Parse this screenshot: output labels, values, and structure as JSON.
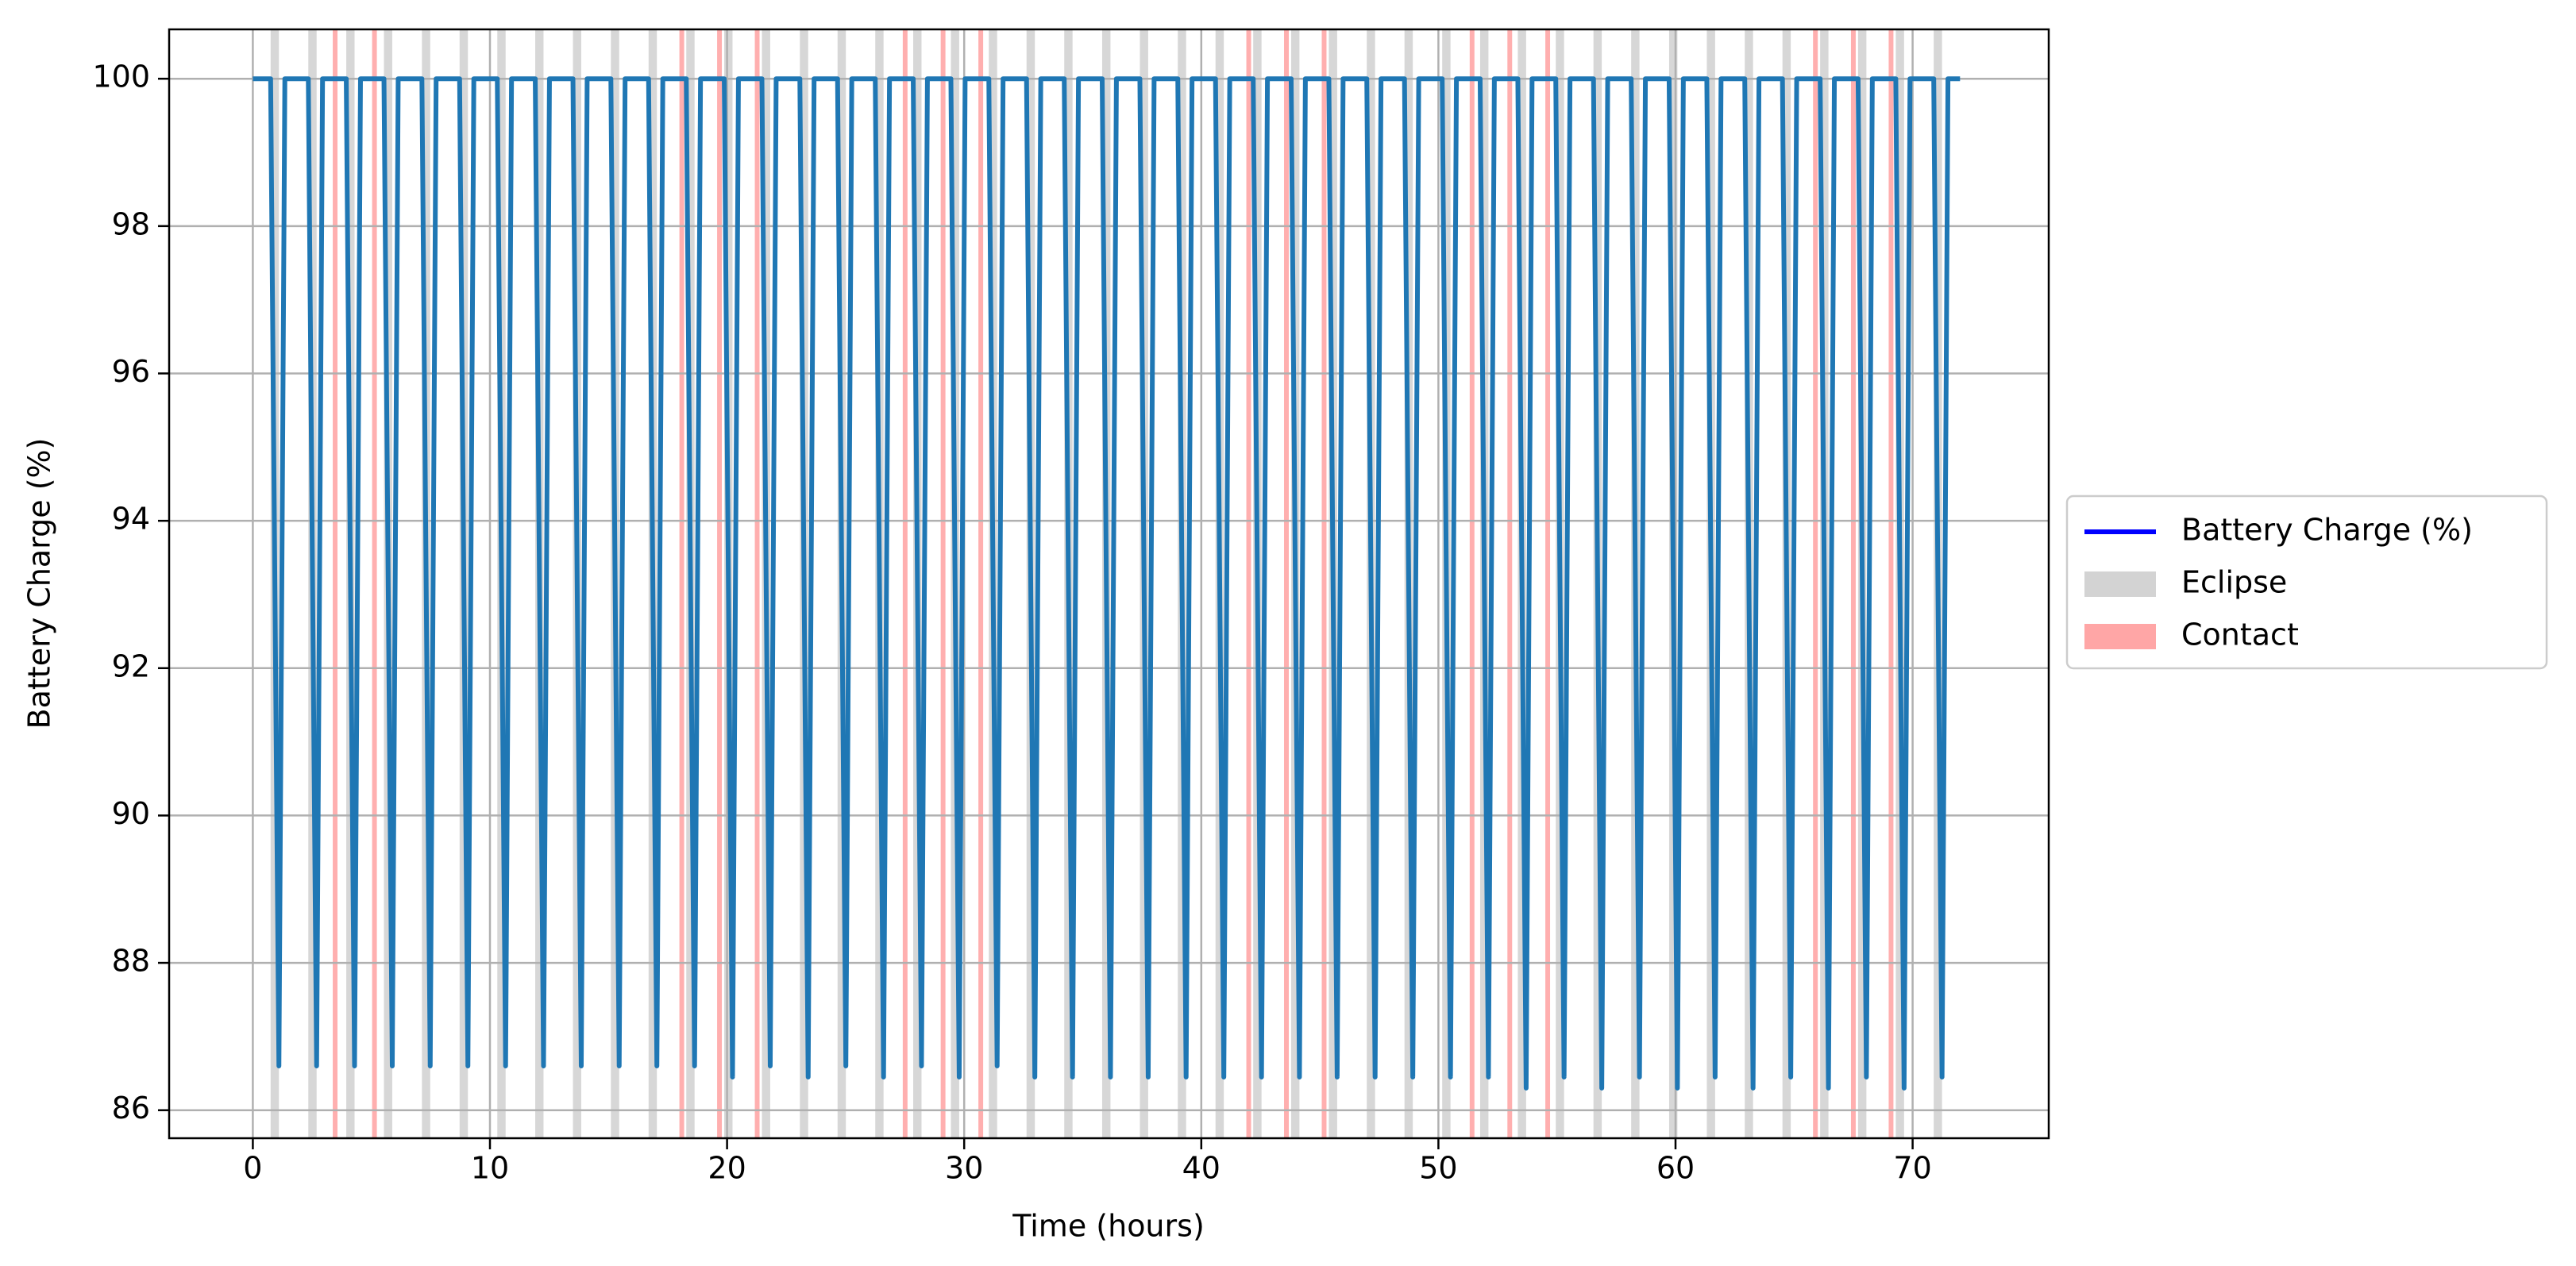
{
  "chart_data": {
    "type": "line",
    "xlabel": "Time (hours)",
    "ylabel": "Battery Charge (%)",
    "xlim": [
      -3.53,
      75.74
    ],
    "ylim": [
      85.62,
      100.67
    ],
    "xticks": [
      0,
      10,
      20,
      30,
      40,
      50,
      60,
      70
    ],
    "yticks": [
      86,
      88,
      90,
      92,
      94,
      96,
      98,
      100
    ],
    "grid": true,
    "legend": "outside right",
    "x": [
      0,
      0.75,
      1.1,
      1.35,
      2.34,
      2.69,
      2.94,
      3.94,
      4.29,
      4.54,
      5.53,
      5.88,
      6.13,
      7.13,
      7.48,
      7.73,
      8.72,
      9.07,
      9.32,
      10.31,
      10.66,
      10.91,
      11.91,
      12.26,
      12.51,
      13.5,
      13.85,
      14.1,
      15.1,
      15.45,
      15.7,
      16.69,
      17.04,
      17.29,
      18.28,
      18.63,
      18.88,
      19.88,
      20.23,
      20.48,
      21.47,
      21.82,
      22.07,
      23.07,
      23.42,
      23.67,
      24.66,
      25.01,
      25.26,
      26.25,
      26.6,
      26.85,
      27.85,
      28.2,
      28.45,
      29.44,
      29.79,
      30.04,
      31.04,
      31.39,
      31.64,
      32.63,
      32.98,
      33.23,
      34.22,
      34.57,
      34.82,
      35.82,
      36.17,
      36.42,
      37.41,
      37.76,
      38.01,
      39.01,
      39.36,
      39.61,
      40.6,
      40.95,
      41.2,
      42.19,
      42.54,
      42.79,
      43.79,
      44.14,
      44.39,
      45.38,
      45.73,
      45.98,
      46.98,
      47.33,
      47.58,
      48.57,
      48.92,
      49.17,
      50.16,
      50.51,
      50.76,
      51.76,
      52.11,
      52.36,
      53.35,
      53.7,
      53.95,
      54.95,
      55.3,
      55.55,
      56.54,
      56.89,
      57.14,
      58.13,
      58.48,
      58.73,
      59.73,
      60.08,
      60.33,
      61.32,
      61.67,
      61.92,
      62.92,
      63.27,
      63.52,
      64.51,
      64.86,
      65.11,
      66.1,
      66.45,
      66.7,
      67.7,
      68.05,
      68.3,
      69.29,
      69.64,
      69.89,
      70.89,
      71.24,
      71.49,
      72
    ],
    "series": [
      {
        "name": "Battery Charge (%)",
        "color": "#1f77b4",
        "legend_color": "#0000ff",
        "values": [
          100,
          100,
          86.6,
          100,
          100,
          86.6,
          100,
          100,
          86.6,
          100,
          100,
          86.6,
          100,
          100,
          86.6,
          100,
          100,
          86.6,
          100,
          100,
          86.6,
          100,
          100,
          86.6,
          100,
          100,
          86.6,
          100,
          100,
          86.6,
          100,
          100,
          86.6,
          100,
          100,
          86.6,
          100,
          100,
          86.45,
          100,
          100,
          86.6,
          100,
          100,
          86.45,
          100,
          100,
          86.6,
          100,
          100,
          86.45,
          100,
          100,
          86.6,
          100,
          100,
          86.45,
          100,
          100,
          86.6,
          100,
          100,
          86.45,
          100,
          100,
          86.45,
          100,
          100,
          86.45,
          100,
          100,
          86.45,
          100,
          100,
          86.45,
          100,
          100,
          86.45,
          100,
          100,
          86.45,
          100,
          100,
          86.45,
          100,
          100,
          86.45,
          100,
          100,
          86.45,
          100,
          100,
          86.45,
          100,
          100,
          86.45,
          100,
          100,
          86.45,
          100,
          100,
          86.3,
          100,
          100,
          86.45,
          100,
          100,
          86.3,
          100,
          100,
          86.45,
          100,
          100,
          86.3,
          100,
          100,
          86.45,
          100,
          100,
          86.3,
          100,
          100,
          86.45,
          100,
          100,
          86.3,
          100,
          100,
          86.45,
          100,
          100,
          86.3,
          100,
          100,
          86.45,
          100,
          100
        ]
      }
    ],
    "shaded_regions": [
      {
        "name": "Eclipse",
        "color": "#d3d3d3",
        "spans": [
          [
            0.75,
            1.1
          ],
          [
            2.34,
            2.69
          ],
          [
            3.94,
            4.29
          ],
          [
            5.53,
            5.88
          ],
          [
            7.13,
            7.48
          ],
          [
            8.72,
            9.07
          ],
          [
            10.31,
            10.66
          ],
          [
            11.91,
            12.26
          ],
          [
            13.5,
            13.85
          ],
          [
            15.1,
            15.45
          ],
          [
            16.69,
            17.04
          ],
          [
            18.28,
            18.63
          ],
          [
            19.88,
            20.23
          ],
          [
            21.47,
            21.82
          ],
          [
            23.07,
            23.42
          ],
          [
            24.66,
            25.01
          ],
          [
            26.25,
            26.6
          ],
          [
            27.85,
            28.2
          ],
          [
            29.44,
            29.79
          ],
          [
            31.04,
            31.39
          ],
          [
            32.63,
            32.98
          ],
          [
            34.22,
            34.57
          ],
          [
            35.82,
            36.17
          ],
          [
            37.41,
            37.76
          ],
          [
            39.01,
            39.36
          ],
          [
            40.6,
            40.95
          ],
          [
            42.19,
            42.54
          ],
          [
            43.79,
            44.14
          ],
          [
            45.38,
            45.73
          ],
          [
            46.98,
            47.33
          ],
          [
            48.57,
            48.92
          ],
          [
            50.16,
            50.51
          ],
          [
            51.76,
            52.11
          ],
          [
            53.35,
            53.7
          ],
          [
            54.95,
            55.3
          ],
          [
            56.54,
            56.89
          ],
          [
            58.13,
            58.48
          ],
          [
            59.73,
            60.08
          ],
          [
            61.32,
            61.67
          ],
          [
            62.92,
            63.27
          ],
          [
            64.51,
            64.86
          ],
          [
            66.1,
            66.45
          ],
          [
            67.7,
            68.05
          ],
          [
            69.29,
            69.64
          ],
          [
            70.89,
            71.24
          ]
        ]
      },
      {
        "name": "Contact",
        "color": "#ffa6a6",
        "spans": [
          [
            3.37,
            3.57
          ],
          [
            5.03,
            5.23
          ],
          [
            17.99,
            18.19
          ],
          [
            19.58,
            19.78
          ],
          [
            21.17,
            21.37
          ],
          [
            27.41,
            27.61
          ],
          [
            29.01,
            29.21
          ],
          [
            30.6,
            30.8
          ],
          [
            41.9,
            42.1
          ],
          [
            43.49,
            43.69
          ],
          [
            45.08,
            45.28
          ],
          [
            51.32,
            51.52
          ],
          [
            52.91,
            53.11
          ],
          [
            54.51,
            54.71
          ],
          [
            65.8,
            66.0
          ],
          [
            67.4,
            67.6
          ],
          [
            68.99,
            69.19
          ]
        ]
      }
    ]
  }
}
